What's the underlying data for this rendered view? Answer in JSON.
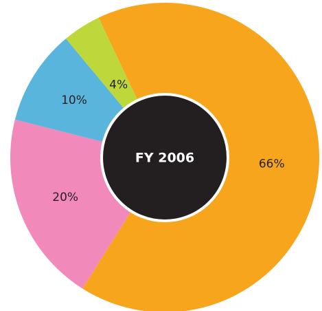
{
  "chart_data": {
    "type": "donut",
    "title": "FY 2006",
    "categories": [
      null,
      null,
      null,
      null
    ],
    "values": [
      66,
      20,
      10,
      4
    ],
    "value_labels": [
      "66%",
      "20%",
      "10%",
      "4%"
    ],
    "colors": [
      "#f7a51d",
      "#f189bb",
      "#5ab5dc",
      "#bed73b"
    ],
    "center_color": "#231f20"
  }
}
